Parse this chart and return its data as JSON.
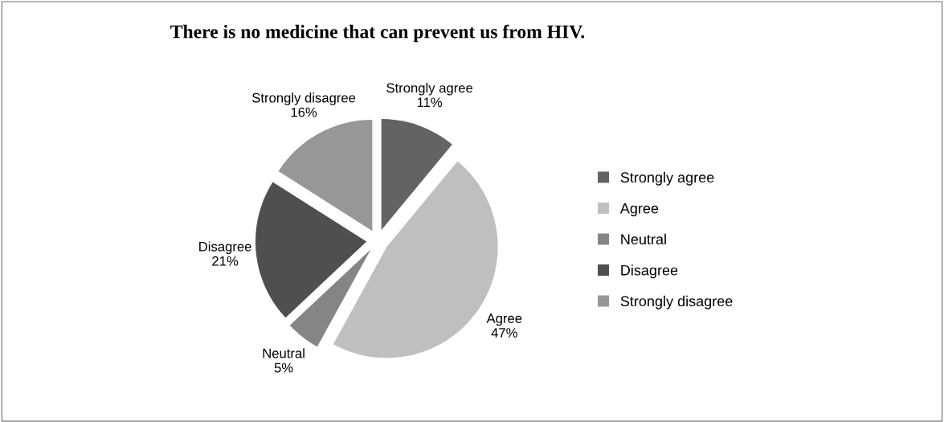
{
  "chart_data": {
    "type": "pie",
    "title": "There is no medicine that can prevent us from HIV.",
    "categories": [
      "Strongly agree",
      "Agree",
      "Neutral",
      "Disagree",
      "Strongly disagree"
    ],
    "values": [
      11,
      47,
      5,
      21,
      16
    ],
    "value_labels": [
      "11%",
      "47%",
      "5%",
      "21%",
      "16%"
    ],
    "colors": [
      "#636363",
      "#bfbfbf",
      "#858585",
      "#4f4f4f",
      "#979797"
    ],
    "legend": "right"
  }
}
